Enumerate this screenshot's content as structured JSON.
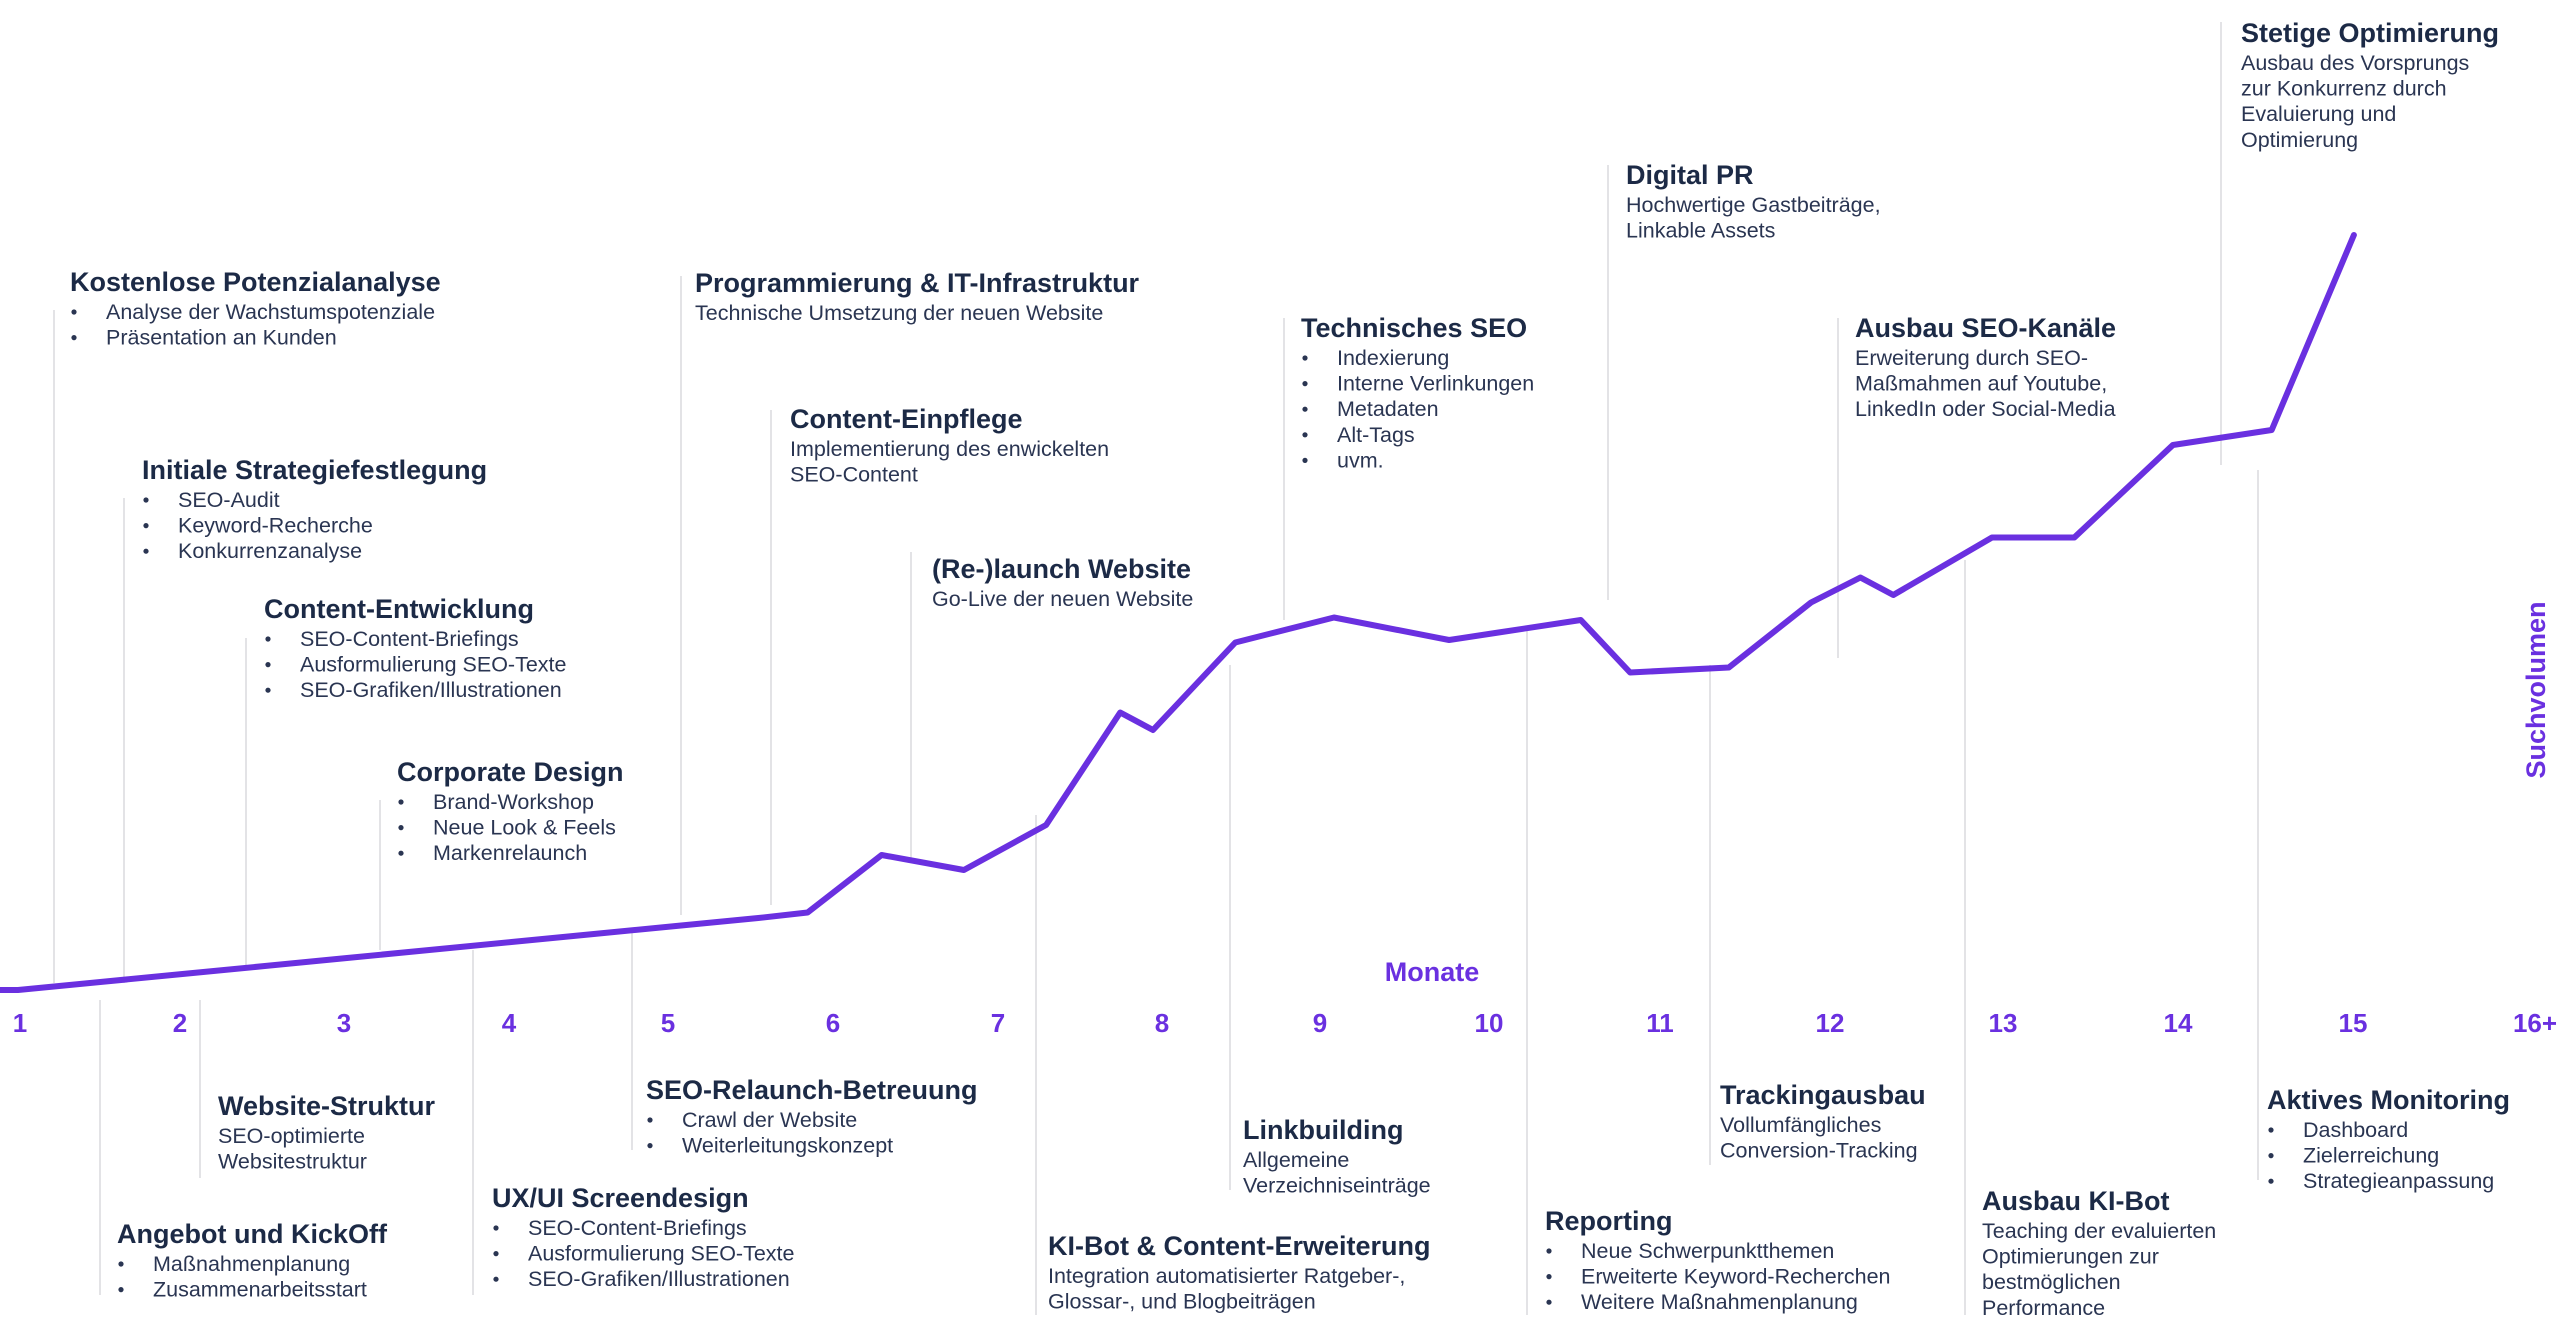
{
  "chart_data": {
    "type": "line",
    "xlabel": "Monate",
    "ylabel": "Suchvolumen",
    "ticks": [
      "1",
      "2",
      "3",
      "4",
      "5",
      "6",
      "7",
      "8",
      "9",
      "10",
      "11",
      "12",
      "13",
      "14",
      "15",
      "16+"
    ],
    "series": [
      {
        "values": [
          [
            0.5,
            0.0
          ],
          [
            1.0,
            0.0
          ],
          [
            1.5,
            1.6
          ],
          [
            2.0,
            3.2
          ],
          [
            2.5,
            4.8
          ],
          [
            3.0,
            6.4
          ],
          [
            3.5,
            8.0
          ],
          [
            4.0,
            9.6
          ],
          [
            4.5,
            11.2
          ],
          [
            5.0,
            12.8
          ],
          [
            5.5,
            14.4
          ],
          [
            5.8,
            15.5
          ],
          [
            6.25,
            27.0
          ],
          [
            6.75,
            24.0
          ],
          [
            7.25,
            33.0
          ],
          [
            7.7,
            55.5
          ],
          [
            7.9,
            52.0
          ],
          [
            8.4,
            69.5
          ],
          [
            9.0,
            74.5
          ],
          [
            9.7,
            70.0
          ],
          [
            10.0,
            71.5
          ],
          [
            10.5,
            74.0
          ],
          [
            10.8,
            63.5
          ],
          [
            11.4,
            64.5
          ],
          [
            11.9,
            77.5
          ],
          [
            12.2,
            82.5
          ],
          [
            12.4,
            79.0
          ],
          [
            13.0,
            90.5
          ],
          [
            13.5,
            90.5
          ],
          [
            14.1,
            109.0
          ],
          [
            14.7,
            112.0
          ],
          [
            15.2,
            151.0
          ]
        ]
      }
    ],
    "color": "#6a30e0"
  },
  "milestones": [
    {
      "title": "Kostenlose Potenzialanalyse",
      "bullets": [
        "Analyse der Wachstumspotenziale",
        "Präsentation an Kunden"
      ]
    },
    {
      "title": "Angebot und KickOff",
      "bullets": [
        "Maßnahmenplanung",
        "Zusammenarbeitsstart"
      ]
    },
    {
      "title": "Initiale Strategiefestlegung",
      "bullets": [
        "SEO-Audit",
        "Keyword-Recherche",
        "Konkurrenzanalyse"
      ]
    },
    {
      "title": "Website-Struktur",
      "lines": [
        "SEO-optimierte",
        "Websitestruktur"
      ]
    },
    {
      "title": "Content-Entwicklung",
      "bullets": [
        "SEO-Content-Briefings",
        "Ausformulierung SEO-Texte",
        "SEO-Grafiken/Illustrationen"
      ]
    },
    {
      "title": "Corporate Design",
      "bullets": [
        "Brand-Workshop",
        "Neue Look & Feels",
        "Markenrelaunch"
      ]
    },
    {
      "title": "UX/UI Screendesign",
      "bullets": [
        "SEO-Content-Briefings",
        "Ausformulierung SEO-Texte",
        "SEO-Grafiken/Illustrationen"
      ]
    },
    {
      "title": "SEO-Relaunch-Betreuung",
      "bullets": [
        "Crawl der Website",
        "Weiterleitungskonzept"
      ]
    },
    {
      "title": "Programmierung & IT-Infrastruktur",
      "lines": [
        "Technische Umsetzung der neuen Website"
      ]
    },
    {
      "title": "Content-Einpflege",
      "lines": [
        "Implementierung des enwickelten",
        "SEO-Content"
      ]
    },
    {
      "title": "(Re-)launch Website",
      "lines": [
        "Go-Live der neuen Website"
      ]
    },
    {
      "title": "KI-Bot & Content-Erweiterung",
      "lines": [
        "Integration automatisierter Ratgeber-,",
        "Glossar-, und Blogbeiträgen"
      ]
    },
    {
      "title": "Linkbuilding",
      "lines": [
        "Allgemeine",
        "Verzeichniseinträge"
      ]
    },
    {
      "title": "Technisches SEO",
      "bullets": [
        "Indexierung",
        "Interne Verlinkungen",
        "Metadaten",
        "Alt-Tags",
        "uvm."
      ]
    },
    {
      "title": "Reporting",
      "bullets": [
        "Neue Schwerpunktthemen",
        "Erweiterte Keyword-Recherchen",
        "Weitere Maßnahmenplanung"
      ]
    },
    {
      "title": "Digital PR",
      "lines": [
        "Hochwertige Gastbeiträge,",
        "Linkable Assets"
      ]
    },
    {
      "title": "Trackingausbau",
      "lines": [
        "Vollumfängliches",
        "Conversion-Tracking"
      ]
    },
    {
      "title": "Ausbau SEO-Kanäle",
      "lines": [
        "Erweiterung durch SEO-",
        "Maßmahmen auf Youtube,",
        "LinkedIn oder Social-Media"
      ]
    },
    {
      "title": "Ausbau KI-Bot",
      "lines": [
        "Teaching der evaluierten",
        "Optimierungen zur",
        "bestmöglichen",
        "Performance"
      ]
    },
    {
      "title": "Stetige Optimierung",
      "lines": [
        "Ausbau des Vorsprungs",
        "zur Konkurrenz durch",
        "Evaluierung und",
        "Optimierung"
      ]
    },
    {
      "title": "Aktives Monitoring",
      "bullets": [
        "Dashboard",
        "Zielerreichung",
        "Strategieanpassung"
      ]
    }
  ]
}
